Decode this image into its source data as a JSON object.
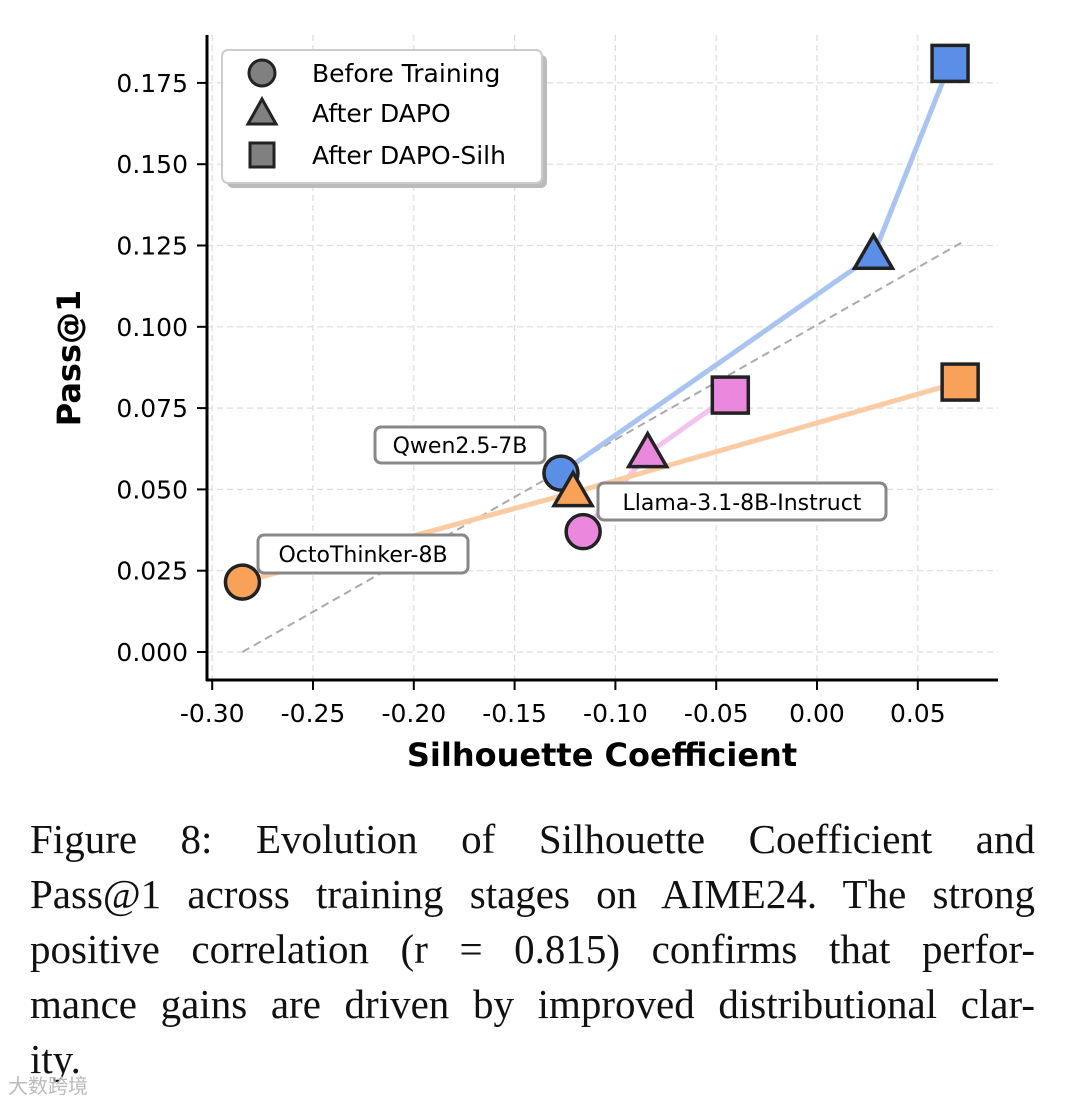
{
  "chart_data": {
    "type": "scatter",
    "xlabel": "Silhouette Coefficient",
    "ylabel": "Pass@1",
    "xlim": [
      -0.305,
      0.09
    ],
    "ylim": [
      -0.008,
      0.19
    ],
    "xticks": [
      -0.3,
      -0.25,
      -0.2,
      -0.15,
      -0.1,
      -0.05,
      0.0,
      0.05
    ],
    "xtick_labels": [
      "-0.30",
      "-0.25",
      "-0.20",
      "-0.15",
      "-0.10",
      "-0.05",
      "0.00",
      "0.05"
    ],
    "yticks": [
      0.0,
      0.025,
      0.05,
      0.075,
      0.1,
      0.125,
      0.15,
      0.175
    ],
    "ytick_labels": [
      "0.000",
      "0.025",
      "0.050",
      "0.075",
      "0.100",
      "0.125",
      "0.150",
      "0.175"
    ],
    "grid": true,
    "legend": {
      "placement": "top-left",
      "entries": [
        {
          "label": "Before Training",
          "marker": "circle"
        },
        {
          "label": "After DAPO",
          "marker": "triangle"
        },
        {
          "label": "After DAPO-Silh",
          "marker": "square"
        }
      ]
    },
    "series": [
      {
        "name": "Qwen2.5-7B",
        "color": "#5b8ee6",
        "line_color": "#a9c4f0",
        "points": [
          {
            "stage": "Before Training",
            "x": -0.127,
            "y": 0.055
          },
          {
            "stage": "After DAPO",
            "x": 0.028,
            "y": 0.122
          },
          {
            "stage": "After DAPO-Silh",
            "x": 0.066,
            "y": 0.181
          }
        ]
      },
      {
        "name": "Llama-3.1-8B-Instruct",
        "color": "#ea88de",
        "line_color": "#f4c2ee",
        "points": [
          {
            "stage": "Before Training",
            "x": -0.116,
            "y": 0.037
          },
          {
            "stage": "After DAPO",
            "x": -0.084,
            "y": 0.061
          },
          {
            "stage": "After DAPO-Silh",
            "x": -0.043,
            "y": 0.079
          }
        ]
      },
      {
        "name": "OctoThinker-8B",
        "color": "#f8a259",
        "line_color": "#fbcba3",
        "points": [
          {
            "stage": "Before Training",
            "x": -0.285,
            "y": 0.0215
          },
          {
            "stage": "After DAPO",
            "x": -0.121,
            "y": 0.049
          },
          {
            "stage": "After DAPO-Silh",
            "x": 0.071,
            "y": 0.083
          }
        ]
      }
    ],
    "trendline": {
      "x": [
        -0.285,
        0.072
      ],
      "y": [
        0.0,
        0.126
      ],
      "style": "dashed"
    }
  },
  "caption": {
    "lines": [
      "Figure 8:  Evolution of Silhouette Coefficient and",
      "Pass@1 across training stages on AIME24. The strong",
      "positive correlation (r = 0.815) confirms that perfor-",
      "mance gains are driven by improved distributional clar-",
      "ity."
    ]
  },
  "watermark": "大数跨境"
}
